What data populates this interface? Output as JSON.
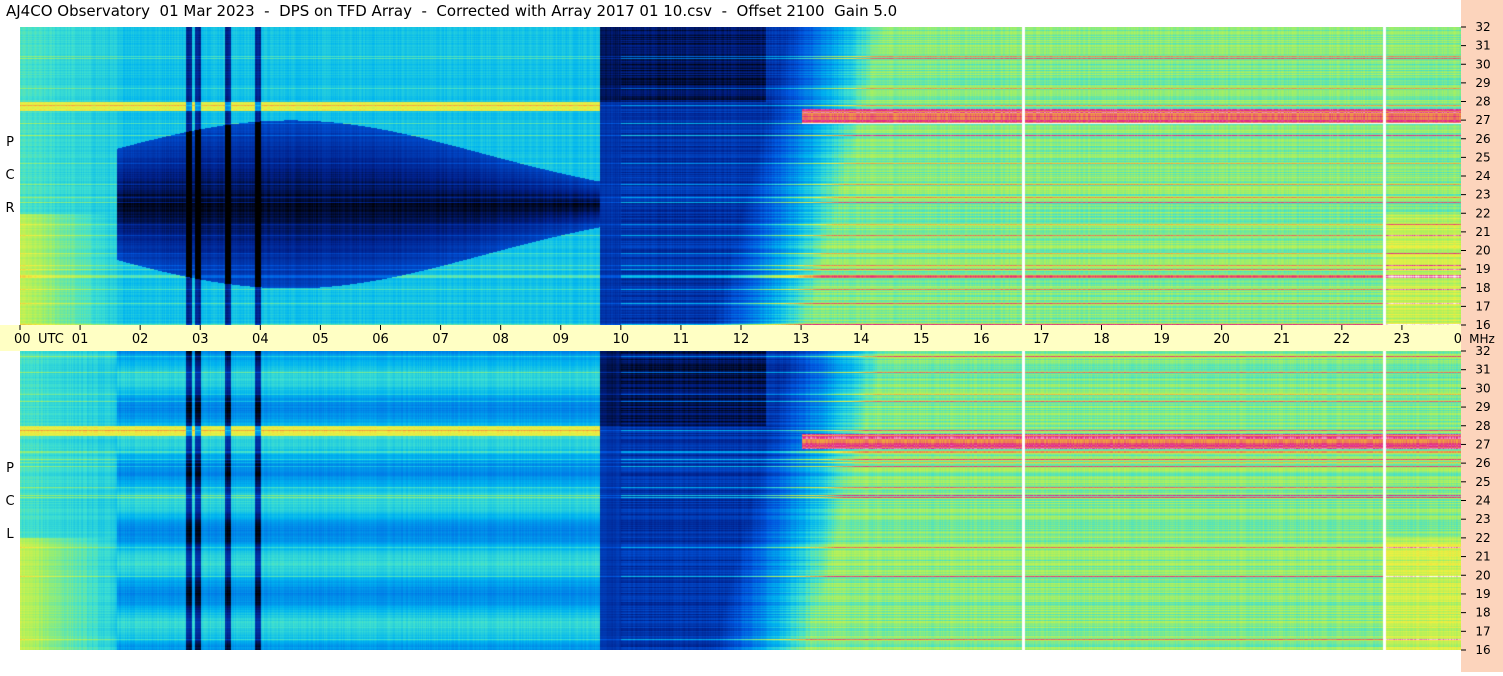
{
  "title": "AJ4CO Observatory  01 Mar 2023  -  DPS on TFD Array  -  Corrected with Array 2017 01 10.csv  -  Offset 2100  Gain 5.0",
  "panels": [
    {
      "id": "rcp",
      "polarization_letters": [
        "P",
        "C",
        "R"
      ]
    },
    {
      "id": "lcp",
      "polarization_letters": [
        "P",
        "C",
        "L"
      ]
    }
  ],
  "colors": {
    "freq_axis_bg": "#fcd4bc",
    "time_axis_bg": "#ffffc4",
    "colormap": [
      "#000000",
      "#00208a",
      "#0057e0",
      "#00b4f0",
      "#40e0d0",
      "#a8f060",
      "#f0f040",
      "#f0a040",
      "#e0208c",
      "#ffffff"
    ]
  },
  "chart_data": {
    "type": "heatmap",
    "title": "AJ4CO Observatory  01 Mar 2023  -  DPS on TFD Array  -  Corrected with Array 2017 01 10.csv  -  Offset 2100  Gain 5.0",
    "x_axis": {
      "unit_label": "UTC",
      "range_hours": [
        0,
        24
      ],
      "tick_labels": [
        "00",
        "01",
        "02",
        "03",
        "04",
        "05",
        "06",
        "07",
        "08",
        "09",
        "10",
        "11",
        "12",
        "13",
        "14",
        "15",
        "16",
        "17",
        "18",
        "19",
        "20",
        "21",
        "22",
        "23",
        "00"
      ]
    },
    "y_axis": {
      "unit_label": "MHz",
      "range_mhz": [
        16,
        32
      ],
      "tick_labels": [
        "32",
        "31",
        "30",
        "29",
        "28",
        "27",
        "26",
        "25",
        "24",
        "23",
        "22",
        "21",
        "20",
        "19",
        "18",
        "17",
        "16"
      ]
    },
    "panels": [
      "RCP",
      "LCP"
    ],
    "grid": false,
    "features": {
      "vertical_dark_lines_utc": [
        2.8,
        2.95,
        3.45,
        3.95
      ],
      "vertical_white_lines_utc": [
        16.7,
        22.7
      ],
      "sharp_transition_utc": 9.65,
      "daytime_ramp_start_utc": 12.4
    }
  }
}
